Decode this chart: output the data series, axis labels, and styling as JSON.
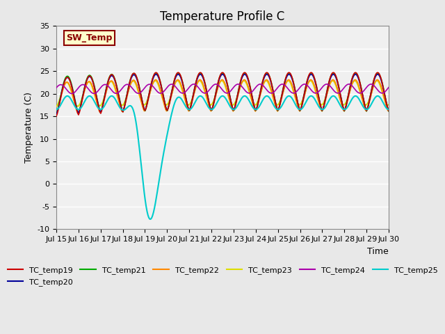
{
  "title": "Temperature Profile C",
  "ylabel": "Temperature (C)",
  "xlabel": "Time",
  "ylim": [
    -10,
    35
  ],
  "xlim": [
    0,
    15
  ],
  "xtick_labels": [
    "Jul 15",
    "Jul 16",
    "Jul 17",
    "Jul 18",
    "Jul 19",
    "Jul 20",
    "Jul 21",
    "Jul 22",
    "Jul 23",
    "Jul 24",
    "Jul 25",
    "Jul 26",
    "Jul 27",
    "Jul 28",
    "Jul 29",
    "Jul 30"
  ],
  "annotation_text": "SW_Temp",
  "annotation_bg": "#ffffcc",
  "annotation_border": "#8b0000",
  "series": {
    "TC_temp19": {
      "color": "#cc0000",
      "lw": 1.2
    },
    "TC_temp20": {
      "color": "#000099",
      "lw": 1.2
    },
    "TC_temp21": {
      "color": "#00aa00",
      "lw": 1.2
    },
    "TC_temp22": {
      "color": "#ff8800",
      "lw": 1.2
    },
    "TC_temp23": {
      "color": "#dddd00",
      "lw": 1.5
    },
    "TC_temp24": {
      "color": "#aa00aa",
      "lw": 1.2
    },
    "TC_temp25": {
      "color": "#00cccc",
      "lw": 1.5
    }
  },
  "bg_color": "#e8e8e8",
  "plot_bg": "#f0f0f0",
  "grid_color": "#ffffff"
}
